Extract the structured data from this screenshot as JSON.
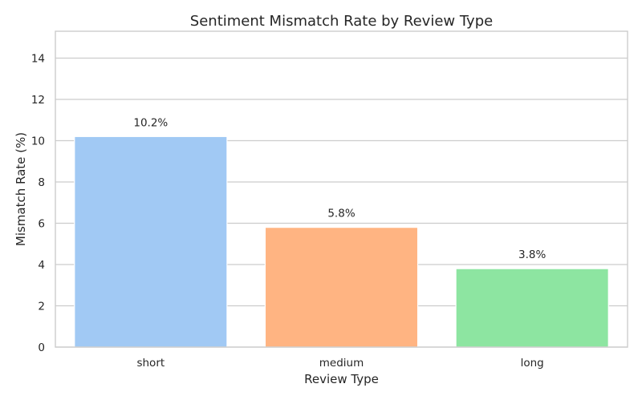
{
  "chart_data": {
    "type": "bar",
    "title": "Sentiment Mismatch Rate by Review Type",
    "xlabel": "Review Type",
    "ylabel": "Mismatch Rate (%)",
    "categories": [
      "short",
      "medium",
      "long"
    ],
    "values": [
      10.2,
      5.8,
      3.8
    ],
    "data_labels": [
      "10.2%",
      "5.8%",
      "3.8%"
    ],
    "colors": [
      "#a1c9f4",
      "#ffb482",
      "#8de5a1"
    ],
    "ylim": [
      0,
      15.3
    ],
    "yticks": [
      0,
      2,
      4,
      6,
      8,
      10,
      12,
      14
    ],
    "grid": true,
    "grid_axis": "y",
    "legend": "none"
  }
}
